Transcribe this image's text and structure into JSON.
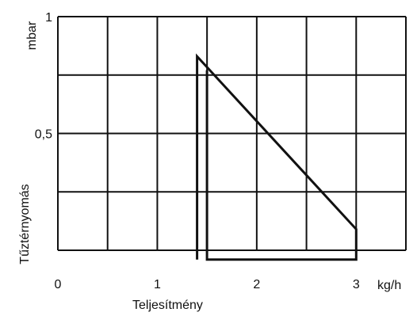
{
  "chart_data": {
    "type": "line",
    "xlabel": "Teljesítmény",
    "xunit": "kg/h",
    "ylabel": "Tűztérnyomás",
    "yunit": "mbar",
    "xlim": [
      0,
      3.5
    ],
    "ylim": [
      0,
      1
    ],
    "x_ticks": [
      {
        "value": 0,
        "label": "0"
      },
      {
        "value": 1,
        "label": "1"
      },
      {
        "value": 2,
        "label": "2"
      },
      {
        "value": 3,
        "label": "3"
      }
    ],
    "y_ticks": [
      {
        "value": 0.5,
        "label": "0,5"
      },
      {
        "value": 1,
        "label": "1"
      }
    ],
    "grid": true,
    "series": [
      {
        "x": [
          1.4,
          1.4,
          3.0,
          3.0,
          1.5,
          1.5
        ],
        "y": [
          -0.04,
          0.83,
          0.09,
          -0.04,
          -0.04,
          0.77
        ]
      }
    ]
  }
}
